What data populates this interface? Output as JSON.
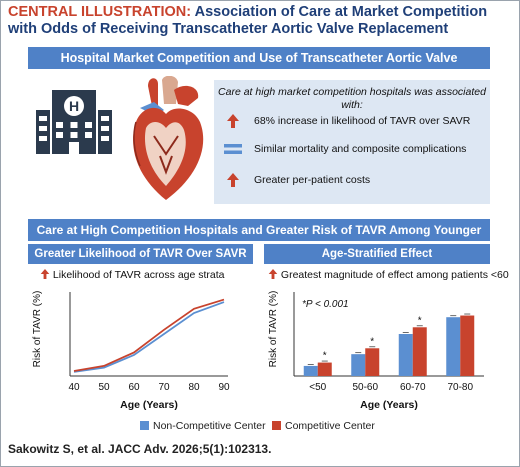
{
  "header": {
    "label": "CENTRAL ILLUSTRATION:",
    "text": "Association of Care at Market Competition with Odds of Receiving Transcatheter Aortic Valve Replacement"
  },
  "section1": {
    "title": "Hospital Market Competition and Use of Transcatheter Aortic Valve Replacement",
    "findings_header": "Care at high market competition hospitals was associated with:",
    "findings": [
      {
        "icon": "up-arrow-icon",
        "text": "68% increase in likelihood of TAVR over SAVR"
      },
      {
        "icon": "equals-icon",
        "text": "Similar mortality and composite complications"
      },
      {
        "icon": "up-arrow-icon",
        "text": "Greater per-patient costs"
      }
    ]
  },
  "section2": {
    "title": "Care at High Competition Hospitals and Greater Risk of TAVR Among Younger Patients",
    "left_title": "Greater Likelihood of TAVR Over SAVR",
    "left_note": "Likelihood of TAVR across age strata",
    "right_title": "Age-Stratified Effect",
    "right_note": "Greatest magnitude of effect among patients <60"
  },
  "chart_data": [
    {
      "type": "line",
      "xlabel": "Age (Years)",
      "ylabel": "Risk of TAVR (%)",
      "x": [
        40,
        50,
        60,
        70,
        80,
        90
      ],
      "xlim": [
        40,
        90
      ],
      "ylim": [
        0,
        100
      ],
      "series": [
        {
          "name": "Non-Competitive Center",
          "color": "#5b8fd1",
          "values": [
            5,
            10,
            25,
            50,
            75,
            88
          ]
        },
        {
          "name": "Competitive Center",
          "color": "#c8432d",
          "values": [
            6,
            12,
            28,
            55,
            80,
            91
          ]
        }
      ]
    },
    {
      "type": "bar",
      "xlabel": "Age (Years)",
      "ylabel": "Risk of TAVR (%)",
      "annotation": "*P < 0.001",
      "categories": [
        "<50",
        "50-60",
        "60-70",
        "70-80"
      ],
      "ylim": [
        0,
        100
      ],
      "significance": [
        "*",
        "*",
        "*",
        ""
      ],
      "series": [
        {
          "name": "Non-Competitive Center",
          "color": "#5b8fd1",
          "values": [
            12,
            26,
            50,
            70
          ]
        },
        {
          "name": "Competitive Center",
          "color": "#c8432d",
          "values": [
            16,
            33,
            58,
            72
          ]
        }
      ]
    }
  ],
  "legend": [
    {
      "name": "Non-Competitive Center",
      "color": "#5b8fd1"
    },
    {
      "name": "Competitive Center",
      "color": "#c8432d"
    }
  ],
  "citation": "Sakowitz S, et al. JACC Adv. 2026;5(1):102313."
}
